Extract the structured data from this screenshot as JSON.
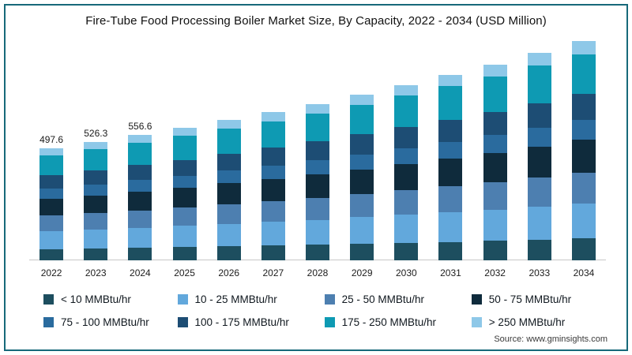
{
  "title": "Fire-Tube Food Processing Boiler Market Size, By Capacity, 2022 - 2034 (USD Million)",
  "source": "Source: www.gminsights.com",
  "frame_border_color": "#17697a",
  "chart_data": {
    "type": "bar",
    "stacked": true,
    "title": "Fire-Tube Food Processing Boiler Market Size, By Capacity, 2022 - 2034 (USD Million)",
    "xlabel": "",
    "ylabel": "USD Million",
    "ylim": [
      0,
      1000
    ],
    "grid": false,
    "legend_position": "bottom",
    "categories": [
      "2022",
      "2023",
      "2024",
      "2025",
      "2026",
      "2027",
      "2028",
      "2029",
      "2030",
      "2031",
      "2032",
      "2033",
      "2034"
    ],
    "totals": [
      497.6,
      526.3,
      556.6,
      588.6,
      622.5,
      658.4,
      696.3,
      736.4,
      778.8,
      823.6,
      871.0,
      921.2,
      974.2
    ],
    "bar_labels": [
      "497.6",
      "526.3",
      "556.6",
      "",
      "",
      "",
      "",
      "",
      "",
      "",
      "",
      "",
      ""
    ],
    "series": [
      {
        "name": "< 10 MMBtu/hr",
        "color": "#1d4e5f",
        "values": [
          49.8,
          52.6,
          55.7,
          58.9,
          62.3,
          65.8,
          69.6,
          73.6,
          77.9,
          82.4,
          87.1,
          92.1,
          97.4
        ]
      },
      {
        "name": "10 - 25 MMBtu/hr",
        "color": "#62a8dc",
        "values": [
          79.6,
          84.2,
          89.1,
          94.2,
          99.6,
          105.3,
          111.4,
          117.8,
          124.6,
          131.8,
          139.4,
          147.4,
          155.9
        ]
      },
      {
        "name": "25 - 50 MMBtu/hr",
        "color": "#4d7fb0",
        "values": [
          69.7,
          73.7,
          77.9,
          82.4,
          87.2,
          92.2,
          97.5,
          103.1,
          109.0,
          115.3,
          121.9,
          129.0,
          136.4
        ]
      },
      {
        "name": "50 - 75 MMBtu/hr",
        "color": "#0f2b3c",
        "values": [
          74.6,
          78.9,
          83.5,
          88.3,
          93.4,
          98.8,
          104.4,
          110.5,
          116.8,
          123.5,
          130.7,
          138.2,
          146.1
        ]
      },
      {
        "name": "75 - 100 MMBtu/hr",
        "color": "#2a6b9e",
        "values": [
          44.8,
          47.4,
          50.1,
          53.0,
          56.0,
          59.3,
          62.7,
          66.3,
          70.1,
          74.1,
          78.4,
          82.9,
          87.7
        ]
      },
      {
        "name": "100 - 175 MMBtu/hr",
        "color": "#1d4d74",
        "values": [
          59.7,
          63.2,
          66.8,
          70.6,
          74.7,
          79.0,
          83.6,
          88.4,
          93.5,
          98.8,
          104.5,
          110.5,
          116.9
        ]
      },
      {
        "name": "175 - 250 MMBtu/hr",
        "color": "#0e9ab3",
        "values": [
          89.6,
          94.7,
          100.2,
          105.9,
          112.1,
          118.5,
          125.3,
          132.6,
          140.2,
          148.2,
          156.8,
          165.8,
          175.4
        ]
      },
      {
        "name": "> 250 MMBtu/hr",
        "color": "#8ec8e8",
        "values": [
          29.9,
          31.6,
          33.4,
          35.3,
          37.4,
          39.5,
          41.8,
          44.2,
          46.7,
          49.4,
          52.3,
          55.3,
          58.5
        ]
      }
    ]
  }
}
